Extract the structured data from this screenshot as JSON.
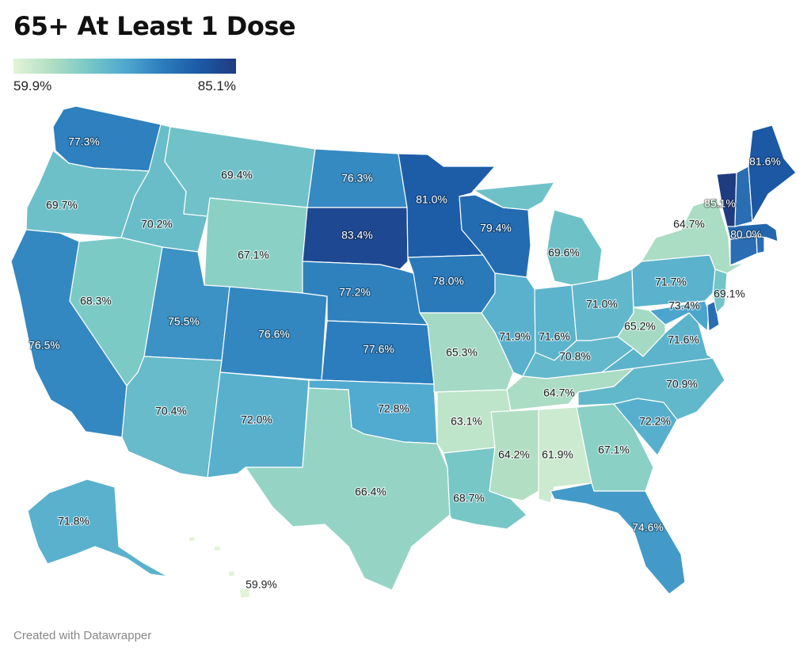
{
  "title": "65+ At Least 1 Dose",
  "legend": {
    "min_label": "59.9%",
    "max_label": "85.1%",
    "min": 59.9,
    "max": 85.1
  },
  "footer": "Created with Datawrapper",
  "states": [
    {
      "id": "WA",
      "value": 77.3,
      "label": "77.3%"
    },
    {
      "id": "OR",
      "value": 69.7,
      "label": "69.7%"
    },
    {
      "id": "CA",
      "value": 76.5,
      "label": "76.5%"
    },
    {
      "id": "NV",
      "value": 68.3,
      "label": "68.3%"
    },
    {
      "id": "ID",
      "value": 70.2,
      "label": "70.2%"
    },
    {
      "id": "MT",
      "value": 69.4,
      "label": "69.4%"
    },
    {
      "id": "WY",
      "value": 67.1,
      "label": "67.1%"
    },
    {
      "id": "UT",
      "value": 75.5,
      "label": "75.5%"
    },
    {
      "id": "AZ",
      "value": 70.4,
      "label": "70.4%"
    },
    {
      "id": "CO",
      "value": 76.6,
      "label": "76.6%"
    },
    {
      "id": "NM",
      "value": 72.0,
      "label": "72.0%"
    },
    {
      "id": "ND",
      "value": 76.3,
      "label": "76.3%"
    },
    {
      "id": "SD",
      "value": 83.4,
      "label": "83.4%"
    },
    {
      "id": "NE",
      "value": 77.2,
      "label": "77.2%"
    },
    {
      "id": "KS",
      "value": 77.6,
      "label": "77.6%"
    },
    {
      "id": "OK",
      "value": 72.8,
      "label": "72.8%"
    },
    {
      "id": "TX",
      "value": 66.4,
      "label": "66.4%"
    },
    {
      "id": "MN",
      "value": 81.0,
      "label": "81.0%"
    },
    {
      "id": "IA",
      "value": 78.0,
      "label": "78.0%"
    },
    {
      "id": "MO",
      "value": 65.3,
      "label": "65.3%"
    },
    {
      "id": "AR",
      "value": 63.1,
      "label": "63.1%"
    },
    {
      "id": "LA",
      "value": 68.7,
      "label": "68.7%"
    },
    {
      "id": "WI",
      "value": 79.4,
      "label": "79.4%"
    },
    {
      "id": "IL",
      "value": 71.9,
      "label": "71.9%"
    },
    {
      "id": "MI",
      "value": 69.6,
      "label": "69.6%"
    },
    {
      "id": "IN",
      "value": 71.6,
      "label": "71.6%"
    },
    {
      "id": "OH",
      "value": 71.0,
      "label": "71.0%"
    },
    {
      "id": "KY",
      "value": 70.8,
      "label": "70.8%"
    },
    {
      "id": "TN",
      "value": 64.7,
      "label": "64.7%"
    },
    {
      "id": "MS",
      "value": 64.2,
      "label": "64.2%"
    },
    {
      "id": "AL",
      "value": 61.9,
      "label": "61.9%"
    },
    {
      "id": "GA",
      "value": 67.1,
      "label": "67.1%"
    },
    {
      "id": "FL",
      "value": 74.6,
      "label": "74.6%"
    },
    {
      "id": "SC",
      "value": 72.2,
      "label": "72.2%"
    },
    {
      "id": "NC",
      "value": 70.9,
      "label": "70.9%"
    },
    {
      "id": "VA",
      "value": 71.6,
      "label": "71.6%"
    },
    {
      "id": "WV",
      "value": 65.2,
      "label": "65.2%"
    },
    {
      "id": "PA",
      "value": 71.7,
      "label": "71.7%"
    },
    {
      "id": "MD",
      "value": 73.4,
      "label": "73.4%"
    },
    {
      "id": "NJ",
      "value": 69.1,
      "label": "69.1%"
    },
    {
      "id": "NY",
      "value": 64.7,
      "label": "64.7%"
    },
    {
      "id": "VT",
      "value": 85.1,
      "label": "85.1%"
    },
    {
      "id": "ME",
      "value": 81.6,
      "label": "81.6%"
    },
    {
      "id": "MA",
      "value": 80.0,
      "label": "80.0%"
    },
    {
      "id": "NH",
      "value": null,
      "label": ""
    },
    {
      "id": "CT",
      "value": null,
      "label": ""
    },
    {
      "id": "RI",
      "value": null,
      "label": ""
    },
    {
      "id": "DE",
      "value": null,
      "label": ""
    },
    {
      "id": "AK",
      "value": 71.8,
      "label": "71.8%"
    },
    {
      "id": "HI",
      "value": 59.9,
      "label": "59.9%"
    }
  ]
}
